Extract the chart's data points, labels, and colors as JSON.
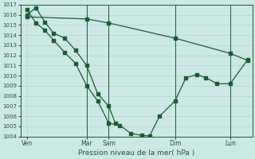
{
  "background_color": "#cce8e4",
  "grid_major_color": "#b8d8d4",
  "grid_minor_color": "#d4e8e4",
  "line_color": "#1a5c35",
  "marker_color": "#1a5c35",
  "xlabel": "Pression niveau de la mer( hPa )",
  "ylim": [
    1004,
    1017
  ],
  "xlim": [
    0,
    10.5
  ],
  "yticks": [
    1004,
    1005,
    1006,
    1007,
    1008,
    1009,
    1010,
    1011,
    1012,
    1013,
    1014,
    1015,
    1016,
    1017
  ],
  "xtick_positions": [
    0.3,
    3.0,
    4.0,
    7.0,
    9.5
  ],
  "xtick_labels": [
    "Ven",
    "Mar",
    "Sam",
    "Dim",
    "Lun"
  ],
  "vlines": [
    3.0,
    4.0,
    7.0,
    9.5
  ],
  "line1_x": [
    0.3,
    3.0,
    4.0,
    7.0,
    9.5,
    10.3
  ],
  "line1_y": [
    1015.8,
    1015.6,
    1015.2,
    1013.7,
    1012.2,
    1011.5
  ],
  "line2_x": [
    0.3,
    0.7,
    1.1,
    1.5,
    2.0,
    2.5,
    3.0,
    3.5,
    4.0,
    4.5,
    5.0,
    5.5,
    5.85,
    6.3,
    7.0,
    7.5,
    8.0,
    8.4,
    8.9,
    9.5,
    10.3
  ],
  "line2_y": [
    1016.5,
    1015.2,
    1014.5,
    1013.5,
    1012.3,
    1011.2,
    1009.0,
    1007.5,
    1005.3,
    1005.1,
    1004.3,
    1004.1,
    1004.05,
    1006.0,
    1007.5,
    1009.8,
    1010.1,
    1009.8,
    1009.2,
    1009.2,
    1011.6
  ],
  "line3_x": [
    0.3,
    0.7,
    1.1,
    1.5,
    2.0,
    2.5,
    3.0,
    3.5,
    4.0,
    4.3
  ],
  "line3_y": [
    1016.0,
    1016.7,
    1015.3,
    1014.2,
    1013.7,
    1012.5,
    1011.0,
    1008.2,
    1007.0,
    1005.3
  ]
}
